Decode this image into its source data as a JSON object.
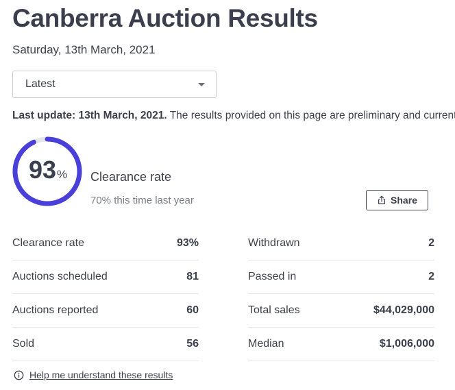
{
  "page": {
    "title": "Canberra Auction Results",
    "date": "Saturday, 13th March, 2021"
  },
  "filter": {
    "selected": "Latest"
  },
  "update": {
    "label": "Last update: 13th March, 2021.",
    "text": " The results provided on this page are preliminary and current"
  },
  "summary": {
    "clearance_rate": 93,
    "clearance_value": "93",
    "percent_sign": "%",
    "label": "Clearance rate",
    "last_year": "70% this time last year",
    "gauge_color": "#4a3fd8",
    "gauge_track_color": "#e4e6ea"
  },
  "share": {
    "label": "Share",
    "icon": "share-icon"
  },
  "stats_left": [
    {
      "label": "Clearance rate",
      "value": "93%"
    },
    {
      "label": "Auctions scheduled",
      "value": "81"
    },
    {
      "label": "Auctions reported",
      "value": "60"
    },
    {
      "label": "Sold",
      "value": "56"
    }
  ],
  "stats_right": [
    {
      "label": "Withdrawn",
      "value": "2"
    },
    {
      "label": "Passed in",
      "value": "2"
    },
    {
      "label": "Total sales",
      "value": "$44,029,000"
    },
    {
      "label": "Median",
      "value": "$1,006,000"
    }
  ],
  "help": {
    "link": "Help me understand these results",
    "icon": "info-icon"
  }
}
